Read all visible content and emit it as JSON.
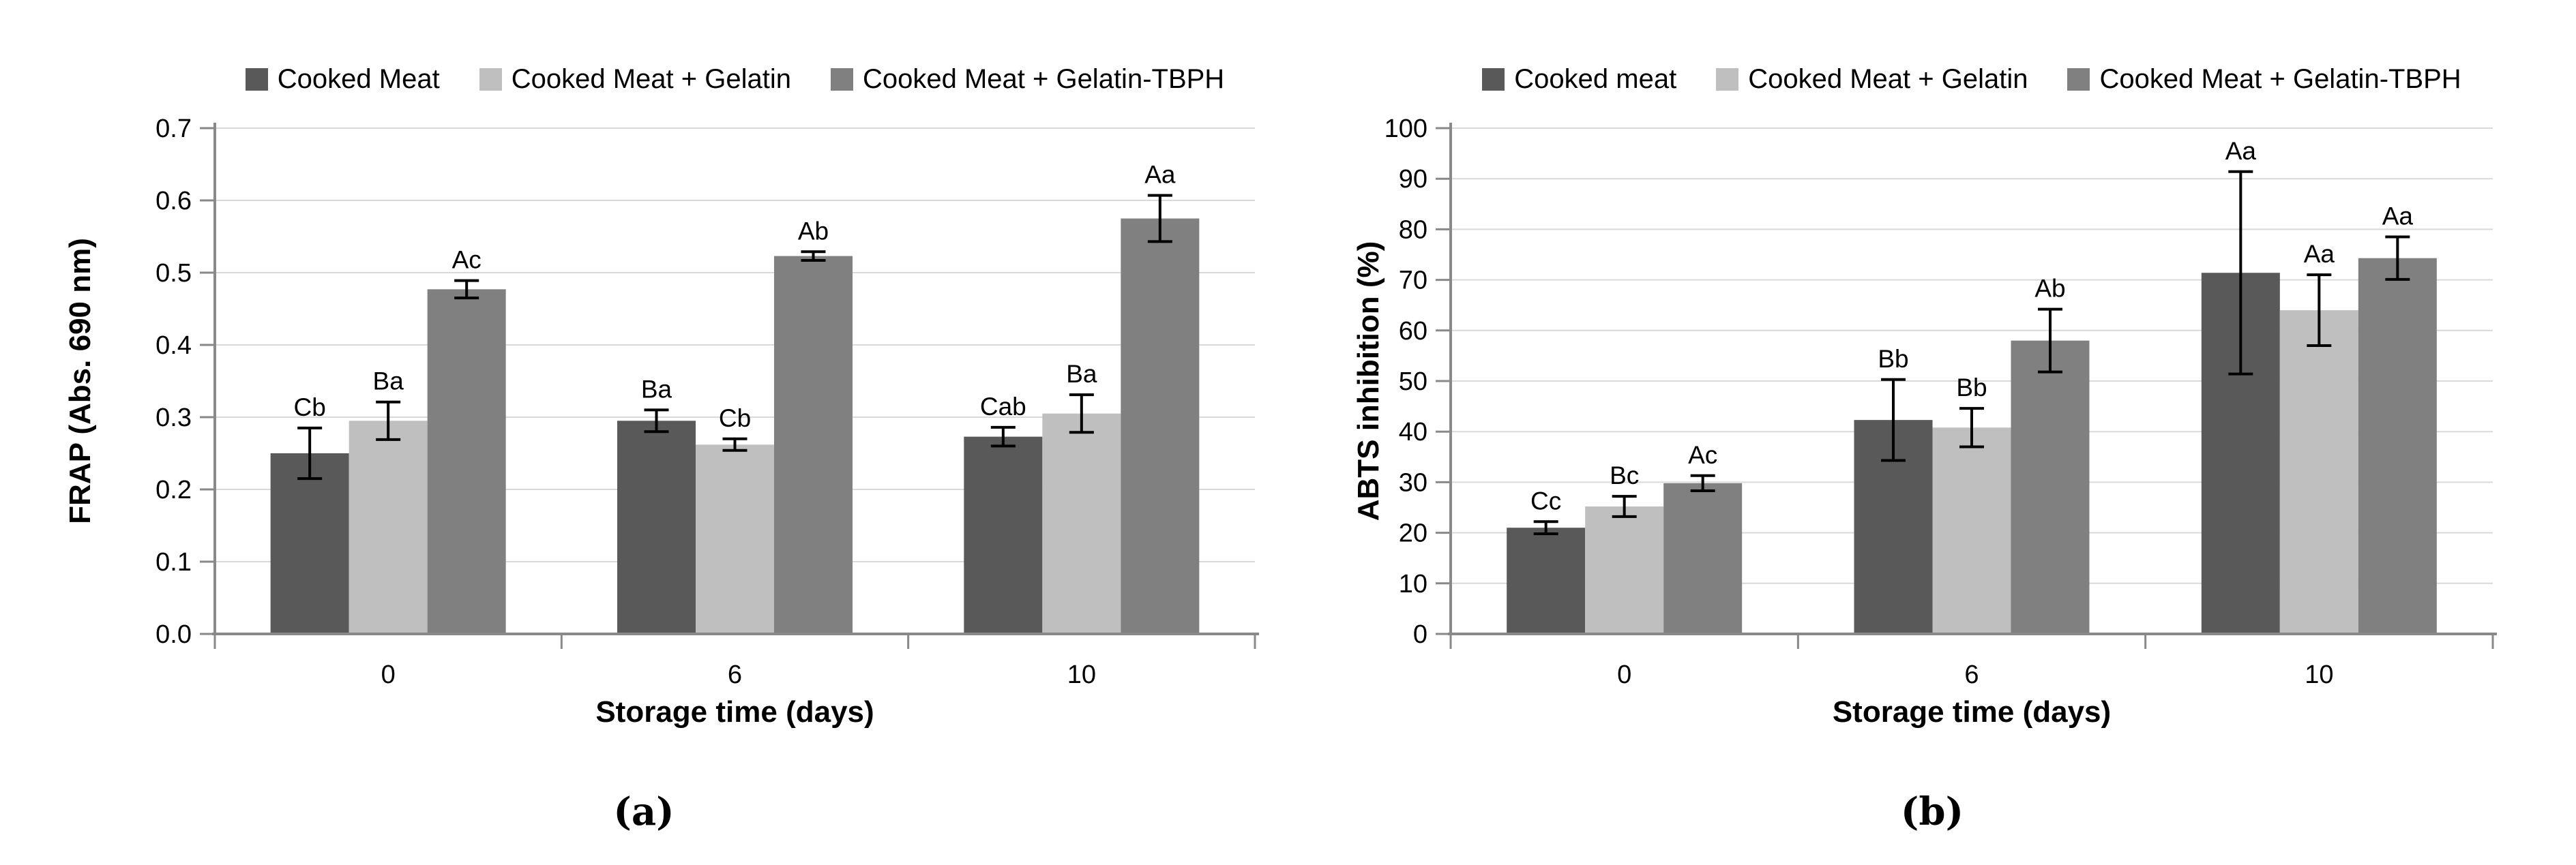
{
  "captions": {
    "a": "(a)",
    "b": "(b)"
  },
  "styles": {
    "series_colors": [
      "#595959",
      "#BFBFBF",
      "#808080"
    ],
    "axis_color": "#898989",
    "gridline_color": "#D9D9D9",
    "error_bar_color": "#000000",
    "text_color": "#000000",
    "background": "#FFFFFF"
  },
  "chart_data": [
    {
      "id": "a",
      "type": "bar",
      "title": "",
      "xlabel": "Storage time (days)",
      "ylabel": "FRAP (Abs. 690 nm)",
      "categories": [
        "0",
        "6",
        "10"
      ],
      "ylim": [
        0,
        0.7
      ],
      "ytick_step": 0.1,
      "ytick_decimals": 1,
      "grid": true,
      "legend_position": "top",
      "error_bars": true,
      "series": [
        {
          "name": "Cooked Meat",
          "color": "#595959",
          "values": [
            0.25,
            0.295,
            0.273
          ],
          "errors": [
            0.035,
            0.015,
            0.013
          ],
          "point_labels": [
            "Cb",
            "Ba",
            "Cab"
          ]
        },
        {
          "name": "Cooked Meat + Gelatin",
          "color": "#BFBFBF",
          "values": [
            0.295,
            0.262,
            0.305
          ],
          "errors": [
            0.026,
            0.008,
            0.026
          ],
          "point_labels": [
            "Ba",
            "Cb",
            "Ba"
          ]
        },
        {
          "name": "Cooked Meat + Gelatin-TBPH",
          "color": "#808080",
          "values": [
            0.477,
            0.523,
            0.575
          ],
          "errors": [
            0.012,
            0.006,
            0.032
          ],
          "point_labels": [
            "Ac",
            "Ab",
            "Aa"
          ]
        }
      ]
    },
    {
      "id": "b",
      "type": "bar",
      "title": "",
      "xlabel": "Storage time (days)",
      "ylabel": "ABTS inhibition (%)",
      "categories": [
        "0",
        "6",
        "10"
      ],
      "ylim": [
        0,
        100
      ],
      "ytick_step": 10,
      "ytick_decimals": 0,
      "grid": true,
      "legend_position": "top",
      "error_bars": true,
      "series": [
        {
          "name": "Cooked meat",
          "color": "#595959",
          "values": [
            21.0,
            42.3,
            71.4
          ],
          "errors": [
            1.2,
            8.0,
            20.0
          ],
          "point_labels": [
            "Cc",
            "Bb",
            "Aa"
          ]
        },
        {
          "name": "Cooked Meat + Gelatin",
          "color": "#BFBFBF",
          "values": [
            25.2,
            40.8,
            64.0
          ],
          "errors": [
            2.0,
            3.8,
            7.0
          ],
          "point_labels": [
            "Bc",
            "Bb",
            "Aa"
          ]
        },
        {
          "name": "Cooked Meat + Gelatin-TBPH",
          "color": "#808080",
          "values": [
            29.8,
            58.0,
            74.3
          ],
          "errors": [
            1.5,
            6.2,
            4.2
          ],
          "point_labels": [
            "Ac",
            "Ab",
            "Aa"
          ]
        }
      ]
    }
  ]
}
